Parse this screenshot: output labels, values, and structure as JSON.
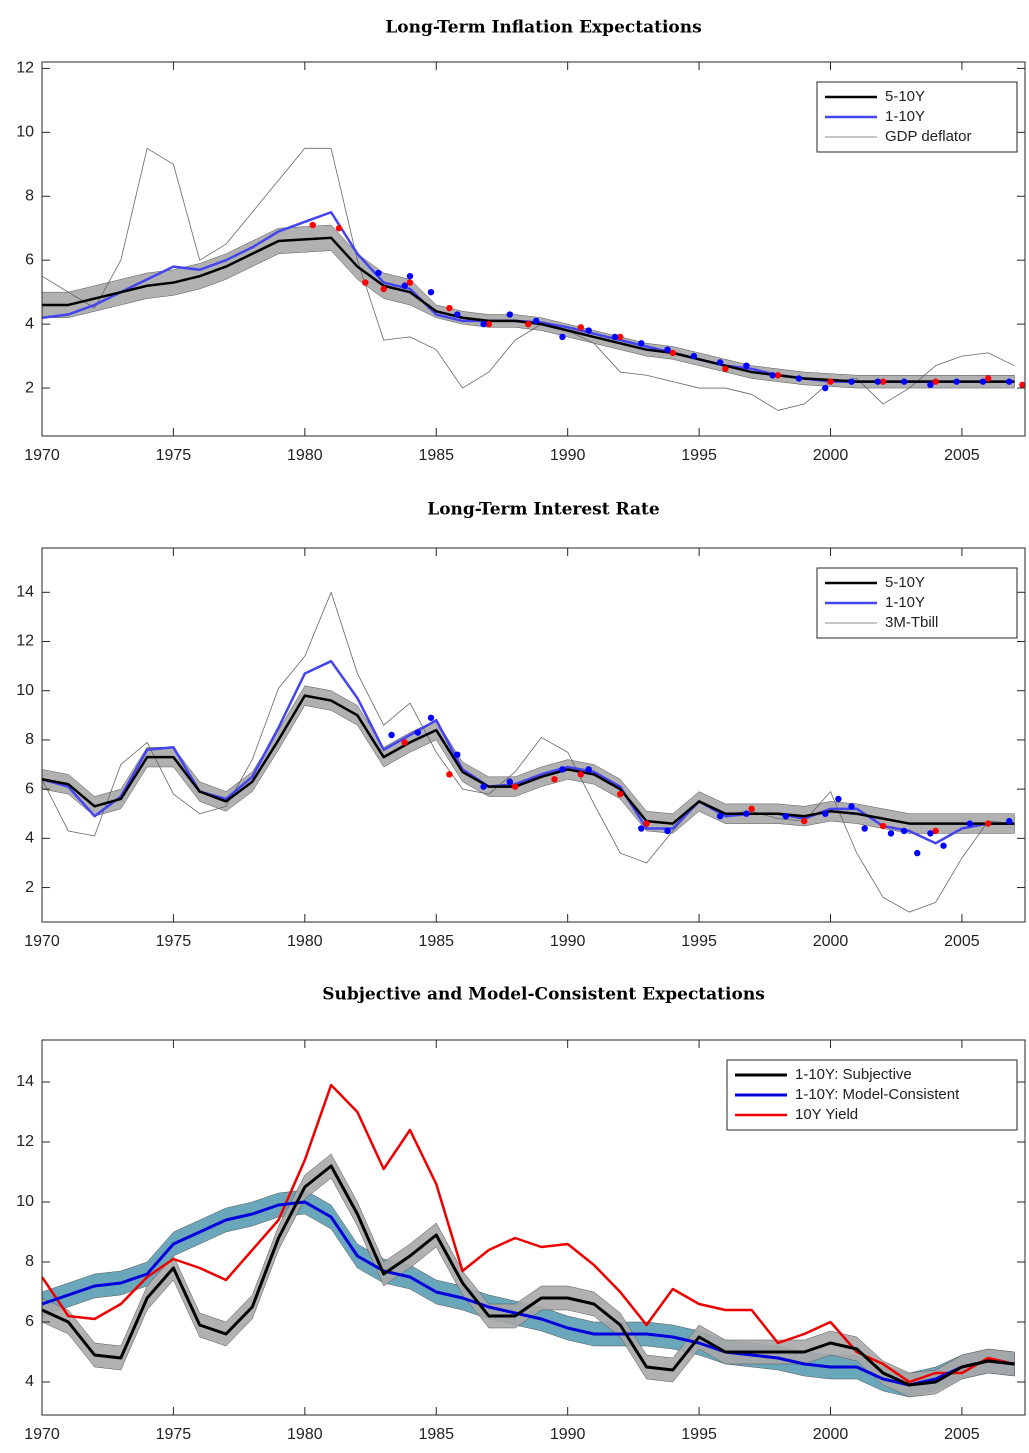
{
  "chart_data": [
    {
      "type": "line",
      "title": "Long-Term Inflation Expectations",
      "x": [
        1970,
        1971,
        1972,
        1973,
        1974,
        1975,
        1976,
        1977,
        1978,
        1979,
        1980,
        1981,
        1982,
        1983,
        1984,
        1985,
        1986,
        1987,
        1988,
        1989,
        1990,
        1991,
        1992,
        1993,
        1994,
        1995,
        1996,
        1997,
        1998,
        1999,
        2000,
        2001,
        2002,
        2003,
        2004,
        2005,
        2006,
        2007
      ],
      "xlim": [
        1970,
        2007.4
      ],
      "xticks": [
        1970,
        1975,
        1980,
        1985,
        1990,
        1995,
        2000,
        2005
      ],
      "ylim": [
        0.5,
        12.2
      ],
      "yticks": [
        2,
        4,
        6,
        8,
        10,
        12
      ],
      "legend": "upper right",
      "bands": [
        {
          "color": "#a9a9a9",
          "lower": [
            4.2,
            4.2,
            4.4,
            4.6,
            4.8,
            4.9,
            5.1,
            5.4,
            5.8,
            6.2,
            6.25,
            6.3,
            5.4,
            4.8,
            4.6,
            4.2,
            4.0,
            3.9,
            3.9,
            3.8,
            3.6,
            3.4,
            3.2,
            3.0,
            2.9,
            2.7,
            2.5,
            2.3,
            2.2,
            2.1,
            2.05,
            2.0,
            2.0,
            2.0,
            2.0,
            2.0,
            2.0,
            2.0
          ],
          "upper": [
            5.0,
            5.0,
            5.2,
            5.4,
            5.6,
            5.7,
            5.9,
            6.2,
            6.6,
            7.0,
            7.05,
            7.1,
            6.2,
            5.6,
            5.4,
            4.6,
            4.4,
            4.3,
            4.3,
            4.2,
            4.0,
            3.8,
            3.6,
            3.4,
            3.3,
            3.1,
            2.9,
            2.7,
            2.6,
            2.5,
            2.45,
            2.4,
            2.4,
            2.4,
            2.4,
            2.4,
            2.4,
            2.4
          ]
        }
      ],
      "series": [
        {
          "name": "5-10Y",
          "color": "#000000",
          "width": 2.5,
          "values": [
            4.6,
            4.6,
            4.8,
            5.0,
            5.2,
            5.3,
            5.5,
            5.8,
            6.2,
            6.6,
            6.65,
            6.7,
            5.8,
            5.2,
            5.0,
            4.4,
            4.2,
            4.1,
            4.1,
            4.0,
            3.8,
            3.6,
            3.4,
            3.2,
            3.1,
            2.9,
            2.7,
            2.5,
            2.4,
            2.3,
            2.25,
            2.2,
            2.2,
            2.2,
            2.2,
            2.2,
            2.2,
            2.2
          ]
        },
        {
          "name": "1-10Y",
          "color": "#4444ee",
          "width": 2.5,
          "values": [
            4.2,
            4.3,
            4.6,
            5.0,
            5.4,
            5.8,
            5.7,
            6.0,
            6.4,
            6.9,
            7.2,
            7.5,
            6.2,
            5.3,
            5.1,
            4.3,
            4.1,
            4.1,
            4.1,
            4.05,
            3.9,
            3.7,
            3.5,
            3.3,
            3.1,
            2.9,
            2.7,
            2.6,
            2.4,
            2.3,
            2.2,
            2.2,
            2.2,
            2.2,
            2.2,
            2.2,
            2.2,
            2.2
          ]
        },
        {
          "name": "GDP deflator",
          "color": "#666666",
          "width": 0.8,
          "values": [
            5.5,
            5.0,
            4.5,
            6.0,
            9.5,
            9.0,
            6.0,
            6.5,
            7.5,
            8.5,
            9.5,
            9.5,
            6.0,
            3.5,
            3.6,
            3.2,
            2.0,
            2.5,
            3.5,
            4.0,
            3.8,
            3.4,
            2.5,
            2.4,
            2.2,
            2.0,
            2.0,
            1.8,
            1.3,
            1.5,
            2.2,
            2.3,
            1.5,
            2.0,
            2.7,
            3.0,
            3.1,
            2.7
          ]
        }
      ],
      "scatter": [
        {
          "color": "#ff0000",
          "x": [
            1980.3,
            1981.3,
            1982.3,
            1983.0,
            1984.0,
            1985.5,
            1987.0,
            1988.5,
            1990.5,
            1992.0,
            1994.0,
            1996.0,
            1998.0,
            2000.0,
            2002.0,
            2004.0,
            2006.0,
            2007.3
          ],
          "values": [
            7.1,
            7.0,
            5.3,
            5.1,
            5.3,
            4.5,
            4.0,
            4.0,
            3.9,
            3.6,
            3.1,
            2.6,
            2.4,
            2.2,
            2.2,
            2.2,
            2.3,
            2.1
          ]
        },
        {
          "color": "#0000ff",
          "x": [
            1982.8,
            1983.8,
            1984.0,
            1984.8,
            1985.8,
            1986.8,
            1987.8,
            1988.8,
            1989.8,
            1990.8,
            1991.8,
            1992.8,
            1993.8,
            1994.8,
            1995.8,
            1996.8,
            1997.8,
            1998.8,
            1999.8,
            2000.8,
            2001.8,
            2002.8,
            2003.8,
            2004.8,
            2005.8,
            2006.8
          ],
          "values": [
            5.6,
            5.2,
            5.5,
            5.0,
            4.3,
            4.0,
            4.3,
            4.1,
            3.6,
            3.8,
            3.6,
            3.4,
            3.2,
            3.0,
            2.8,
            2.7,
            2.4,
            2.3,
            2.0,
            2.2,
            2.2,
            2.2,
            2.1,
            2.2,
            2.2,
            2.2
          ]
        }
      ]
    },
    {
      "type": "line",
      "title": "Long-Term Interest Rate",
      "x": [
        1970,
        1971,
        1972,
        1973,
        1974,
        1975,
        1976,
        1977,
        1978,
        1979,
        1980,
        1981,
        1982,
        1983,
        1984,
        1985,
        1986,
        1987,
        1988,
        1989,
        1990,
        1991,
        1992,
        1993,
        1994,
        1995,
        1996,
        1997,
        1998,
        1999,
        2000,
        2001,
        2002,
        2003,
        2004,
        2005,
        2006,
        2007
      ],
      "xlim": [
        1970,
        2007.4
      ],
      "xticks": [
        1970,
        1975,
        1980,
        1985,
        1990,
        1995,
        2000,
        2005
      ],
      "ylim": [
        0.6,
        15.8
      ],
      "yticks": [
        2,
        4,
        6,
        8,
        10,
        12,
        14
      ],
      "legend": "upper right",
      "bands": [
        {
          "color": "#a9a9a9",
          "lower": [
            6.0,
            5.8,
            4.9,
            5.2,
            6.9,
            6.9,
            5.5,
            5.1,
            5.9,
            7.6,
            9.4,
            9.2,
            8.6,
            6.9,
            7.5,
            8.0,
            6.3,
            5.7,
            5.7,
            6.1,
            6.4,
            6.2,
            5.6,
            4.3,
            4.2,
            5.1,
            4.6,
            4.6,
            4.6,
            4.5,
            4.7,
            4.6,
            4.4,
            4.2,
            4.2,
            4.2,
            4.2,
            4.2
          ],
          "upper": [
            6.8,
            6.6,
            5.7,
            6.0,
            7.7,
            7.7,
            6.3,
            5.9,
            6.7,
            8.4,
            10.2,
            10.0,
            9.4,
            7.7,
            8.3,
            8.8,
            7.1,
            6.5,
            6.5,
            6.9,
            7.2,
            7.0,
            6.4,
            5.1,
            5.0,
            5.9,
            5.4,
            5.4,
            5.4,
            5.3,
            5.5,
            5.4,
            5.2,
            5.0,
            5.0,
            5.0,
            5.0,
            5.0
          ]
        }
      ],
      "series": [
        {
          "name": "5-10Y",
          "color": "#000000",
          "width": 2.5,
          "values": [
            6.4,
            6.2,
            5.3,
            5.6,
            7.3,
            7.3,
            5.9,
            5.5,
            6.3,
            8.0,
            9.8,
            9.6,
            9.0,
            7.3,
            7.9,
            8.4,
            6.7,
            6.1,
            6.1,
            6.5,
            6.8,
            6.6,
            6.0,
            4.7,
            4.6,
            5.5,
            5.0,
            5.0,
            5.0,
            4.9,
            5.1,
            5.0,
            4.8,
            4.6,
            4.6,
            4.6,
            4.6,
            4.6
          ]
        },
        {
          "name": "1-10Y",
          "color": "#4444ee",
          "width": 2.5,
          "values": [
            6.4,
            6.1,
            4.9,
            5.7,
            7.6,
            7.7,
            5.9,
            5.6,
            6.5,
            8.5,
            10.7,
            11.2,
            9.7,
            7.6,
            8.2,
            8.8,
            6.8,
            6.1,
            6.2,
            6.6,
            6.9,
            6.7,
            6.1,
            4.4,
            4.4,
            5.5,
            4.9,
            5.0,
            5.0,
            4.8,
            5.2,
            5.2,
            4.5,
            4.3,
            3.8,
            4.4,
            4.6,
            4.6
          ]
        },
        {
          "name": "3M-Tbill",
          "color": "#666666",
          "width": 0.8,
          "values": [
            6.4,
            4.3,
            4.1,
            7.0,
            7.9,
            5.8,
            5.0,
            5.3,
            7.2,
            10.1,
            11.4,
            14.0,
            10.7,
            8.6,
            9.5,
            7.5,
            6.0,
            5.8,
            6.7,
            8.1,
            7.5,
            5.4,
            3.4,
            3.0,
            4.3,
            5.5,
            5.0,
            5.1,
            4.8,
            4.7,
            5.9,
            3.4,
            1.6,
            1.0,
            1.4,
            3.2,
            4.7,
            4.6
          ]
        }
      ],
      "scatter": [
        {
          "color": "#ff0000",
          "x": [
            1983.8,
            1985.5,
            1988.0,
            1989.5,
            1990.5,
            1992.0,
            1993.0,
            1997.0,
            1999.0,
            2002.0,
            2004.0,
            2006.0
          ],
          "values": [
            7.9,
            6.6,
            6.1,
            6.4,
            6.6,
            5.8,
            4.6,
            5.2,
            4.7,
            4.5,
            4.3,
            4.6
          ]
        },
        {
          "color": "#0000ff",
          "x": [
            1983.3,
            1984.3,
            1984.8,
            1985.8,
            1986.8,
            1987.8,
            1989.8,
            1990.8,
            1992.8,
            1993.8,
            1995.8,
            1996.8,
            1998.3,
            1999.8,
            2000.3,
            2000.8,
            2001.3,
            2002.3,
            2002.8,
            2003.3,
            2003.8,
            2004.3,
            2005.3,
            2006.8
          ],
          "values": [
            8.2,
            8.3,
            8.9,
            7.4,
            6.1,
            6.3,
            6.8,
            6.8,
            4.4,
            4.3,
            4.9,
            5.0,
            4.9,
            5.0,
            5.6,
            5.3,
            4.4,
            4.2,
            4.3,
            3.4,
            4.2,
            3.7,
            4.6,
            4.7
          ]
        }
      ]
    },
    {
      "type": "line",
      "title": "Subjective and Model-Consistent Expectations",
      "x": [
        1970,
        1971,
        1972,
        1973,
        1974,
        1975,
        1976,
        1977,
        1978,
        1979,
        1980,
        1981,
        1982,
        1983,
        1984,
        1985,
        1986,
        1987,
        1988,
        1989,
        1990,
        1991,
        1992,
        1993,
        1994,
        1995,
        1996,
        1997,
        1998,
        1999,
        2000,
        2001,
        2002,
        2003,
        2004,
        2005,
        2006,
        2007
      ],
      "xlim": [
        1970,
        2007.4
      ],
      "xticks": [
        1970,
        1975,
        1980,
        1985,
        1990,
        1995,
        2000,
        2005
      ],
      "ylim": [
        2.9,
        15.4
      ],
      "yticks": [
        4,
        6,
        8,
        10,
        12,
        14
      ],
      "legend": "upper right",
      "bands": [
        {
          "color": "#5b9db4",
          "lower": [
            6.2,
            6.5,
            6.8,
            6.9,
            7.2,
            8.2,
            8.6,
            9.0,
            9.2,
            9.5,
            9.6,
            9.1,
            7.8,
            7.3,
            7.1,
            6.6,
            6.4,
            6.1,
            5.9,
            5.7,
            5.4,
            5.2,
            5.2,
            5.2,
            5.1,
            4.9,
            4.6,
            4.5,
            4.4,
            4.2,
            4.1,
            4.1,
            3.7,
            3.5,
            3.7,
            4.1,
            4.3,
            4.2
          ],
          "upper": [
            7.0,
            7.3,
            7.6,
            7.7,
            8.0,
            9.0,
            9.4,
            9.8,
            10.0,
            10.3,
            10.4,
            9.9,
            8.6,
            8.1,
            7.9,
            7.4,
            7.2,
            6.9,
            6.7,
            6.5,
            6.2,
            6.0,
            6.0,
            6.0,
            5.9,
            5.7,
            5.4,
            5.3,
            5.2,
            5.0,
            4.9,
            4.9,
            4.5,
            4.3,
            4.5,
            4.9,
            5.1,
            5.0
          ]
        },
        {
          "color": "#a9a9a9",
          "lower": [
            6.0,
            5.6,
            4.5,
            4.4,
            6.4,
            7.4,
            5.5,
            5.2,
            6.1,
            8.4,
            10.1,
            10.8,
            9.2,
            7.2,
            7.8,
            8.5,
            6.9,
            5.8,
            5.8,
            6.4,
            6.4,
            6.2,
            5.5,
            4.1,
            4.0,
            5.1,
            4.6,
            4.6,
            4.6,
            4.6,
            4.9,
            4.7,
            3.9,
            3.5,
            3.6,
            4.1,
            4.3,
            4.2
          ],
          "upper": [
            6.8,
            6.4,
            5.3,
            5.2,
            7.2,
            8.2,
            6.3,
            6.0,
            6.9,
            9.2,
            10.9,
            11.6,
            10.0,
            8.0,
            8.6,
            9.3,
            7.7,
            6.6,
            6.6,
            7.2,
            7.2,
            7.0,
            6.3,
            4.9,
            4.8,
            5.9,
            5.4,
            5.4,
            5.4,
            5.4,
            5.7,
            5.5,
            4.7,
            4.3,
            4.4,
            4.9,
            5.1,
            5.0
          ]
        }
      ],
      "series": [
        {
          "name": "1-10Y: Subjective",
          "color": "#000000",
          "width": 3,
          "values": [
            6.4,
            6.0,
            4.9,
            4.8,
            6.8,
            7.8,
            5.9,
            5.6,
            6.5,
            8.8,
            10.5,
            11.2,
            9.6,
            7.6,
            8.2,
            8.9,
            7.3,
            6.2,
            6.2,
            6.8,
            6.8,
            6.6,
            5.9,
            4.5,
            4.4,
            5.5,
            5.0,
            5.0,
            5.0,
            5.0,
            5.3,
            5.1,
            4.3,
            3.9,
            4.0,
            4.5,
            4.7,
            4.6
          ]
        },
        {
          "name": "1-10Y: Model-Consistent",
          "color": "#0000dd",
          "width": 3,
          "values": [
            6.6,
            6.9,
            7.2,
            7.3,
            7.6,
            8.6,
            9.0,
            9.4,
            9.6,
            9.9,
            10.0,
            9.5,
            8.2,
            7.7,
            7.5,
            7.0,
            6.8,
            6.5,
            6.3,
            6.1,
            5.8,
            5.6,
            5.6,
            5.6,
            5.5,
            5.3,
            5.0,
            4.9,
            4.8,
            4.6,
            4.5,
            4.5,
            4.1,
            3.9,
            4.1,
            4.5,
            4.7,
            4.6
          ]
        },
        {
          "name": "10Y Yield",
          "color": "#ee0000",
          "width": 2.5,
          "values": [
            7.5,
            6.2,
            6.1,
            6.6,
            7.5,
            8.1,
            7.8,
            7.4,
            8.4,
            9.4,
            11.4,
            13.9,
            13.0,
            11.1,
            12.4,
            10.6,
            7.7,
            8.4,
            8.8,
            8.5,
            8.6,
            7.9,
            7.0,
            5.9,
            7.1,
            6.6,
            6.4,
            6.4,
            5.3,
            5.6,
            6.0,
            5.0,
            4.6,
            4.0,
            4.3,
            4.3,
            4.8,
            4.6
          ]
        }
      ],
      "scatter": []
    }
  ]
}
